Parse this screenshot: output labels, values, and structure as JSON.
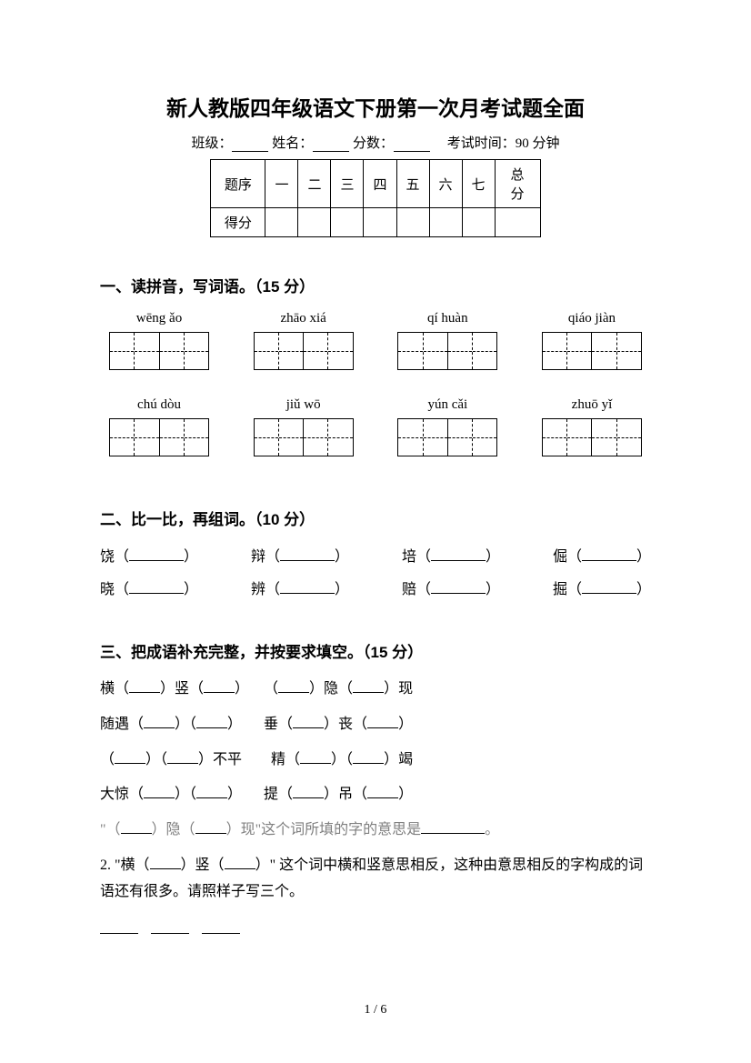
{
  "title": "新人教版四年级语文下册第一次月考试题全面",
  "info": {
    "class_label": "班级：",
    "name_label": "姓名：",
    "score_label": "分数：",
    "time_label": "考试时间：90 分钟"
  },
  "score_table": {
    "headers": [
      "题序",
      "一",
      "二",
      "三",
      "四",
      "五",
      "六",
      "七",
      "总分"
    ],
    "row2_label": "得分"
  },
  "section1": {
    "header": "一、读拼音，写词语。（15 分）",
    "row1": [
      "wēng   ǎo",
      "zhāo xiá",
      "qí huàn",
      "qiáo jiàn"
    ],
    "row2": [
      "chú dòu",
      "jiǔ wō",
      "yún cǎi",
      "zhuō yǐ"
    ]
  },
  "section2": {
    "header": "二、比一比，再组词。（10 分）",
    "row1": [
      {
        "char": "饶",
        "open": "（",
        "close": "）"
      },
      {
        "char": "辩",
        "open": "（",
        "close": "）"
      },
      {
        "char": "培",
        "open": "（",
        "close": "）"
      },
      {
        "char": "倔",
        "open": "（",
        "close": "）"
      }
    ],
    "row2": [
      {
        "char": "晓",
        "open": "（",
        "close": "）"
      },
      {
        "char": "辨",
        "open": "（",
        "close": "）"
      },
      {
        "char": "赔",
        "open": "（",
        "close": "）"
      },
      {
        "char": "掘",
        "open": "（",
        "close": "）"
      }
    ]
  },
  "section3": {
    "header": "三、把成语补充完整，并按要求填空。（15 分）",
    "lines": [
      {
        "parts": [
          "横（",
          "）竖（",
          "）　　（",
          "）隐（",
          "）现"
        ]
      },
      {
        "parts": [
          "随遇（",
          "）（",
          "）　　垂（",
          "）丧（",
          "）"
        ]
      },
      {
        "parts": [
          "（",
          "）（",
          "）不平　　精（",
          "）（",
          "）竭"
        ]
      },
      {
        "parts": [
          "大惊（",
          "）（",
          "）　　提（",
          "）吊（",
          "）"
        ]
      }
    ],
    "gray_line_prefix": "\"（",
    "gray_line_mid1": "）隐（",
    "gray_line_mid2": "）现\"这个词所填的字的意思是",
    "gray_line_suffix": "。",
    "q2_prefix": "2. \"横（",
    "q2_mid": "）竖（",
    "q2_text": "）\" 这个词中横和竖意思相反，这种由意思相反的字构成的词语还有很多。请照样子写三个。"
  },
  "page_num": "1 / 6",
  "colors": {
    "text": "#000000",
    "gray": "#808080",
    "bg": "#ffffff"
  }
}
